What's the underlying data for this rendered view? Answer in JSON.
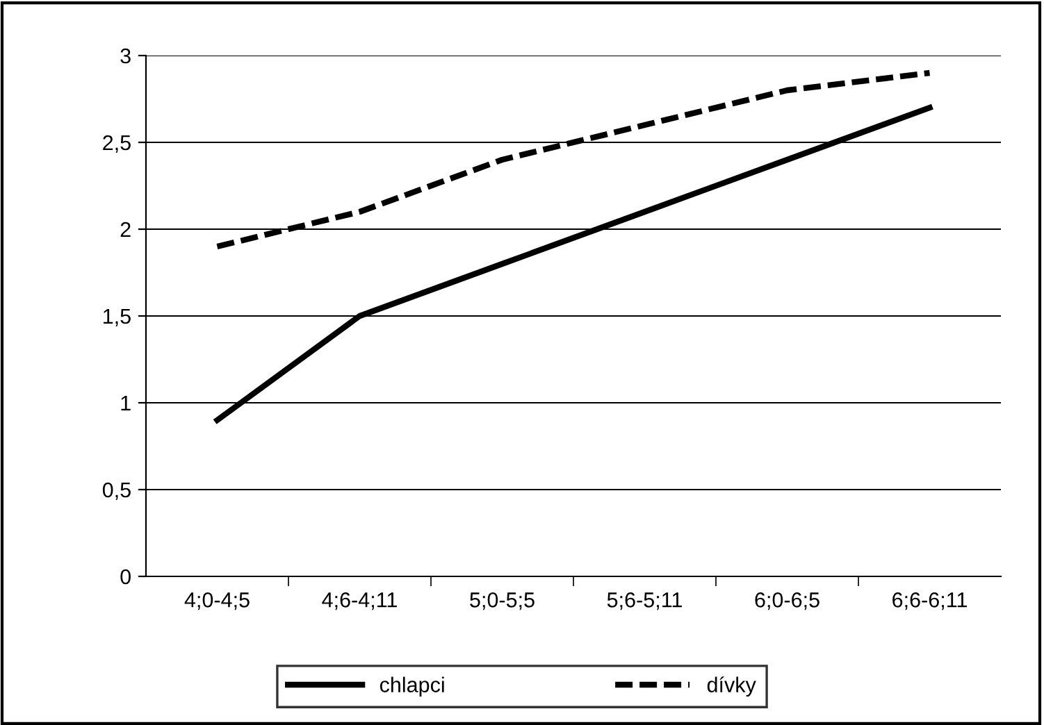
{
  "chart_data": {
    "type": "line",
    "categories": [
      "4;0-4;5",
      "4;6-4;11",
      "5;0-5;5",
      "5;6-5;11",
      "6;0-6;5",
      "6;6-6;11"
    ],
    "series": [
      {
        "name": "chlapci",
        "color": "#000000",
        "line_style": "solid",
        "values": [
          0.9,
          1.5,
          1.8,
          2.1,
          2.4,
          2.7
        ]
      },
      {
        "name": "dívky",
        "color": "#000000",
        "line_style": "dashed",
        "values": [
          1.9,
          2.1,
          2.4,
          2.6,
          2.8,
          2.9
        ]
      }
    ],
    "ylim": [
      0,
      3
    ],
    "yticks": [
      0,
      {
        "value": 0.5,
        "label": "0,5"
      },
      1,
      {
        "value": 1.5,
        "label": "1,5"
      },
      2,
      {
        "value": 2.5,
        "label": "2,5"
      },
      3
    ],
    "grid": "y",
    "legend": "bottom",
    "marker": "none"
  }
}
